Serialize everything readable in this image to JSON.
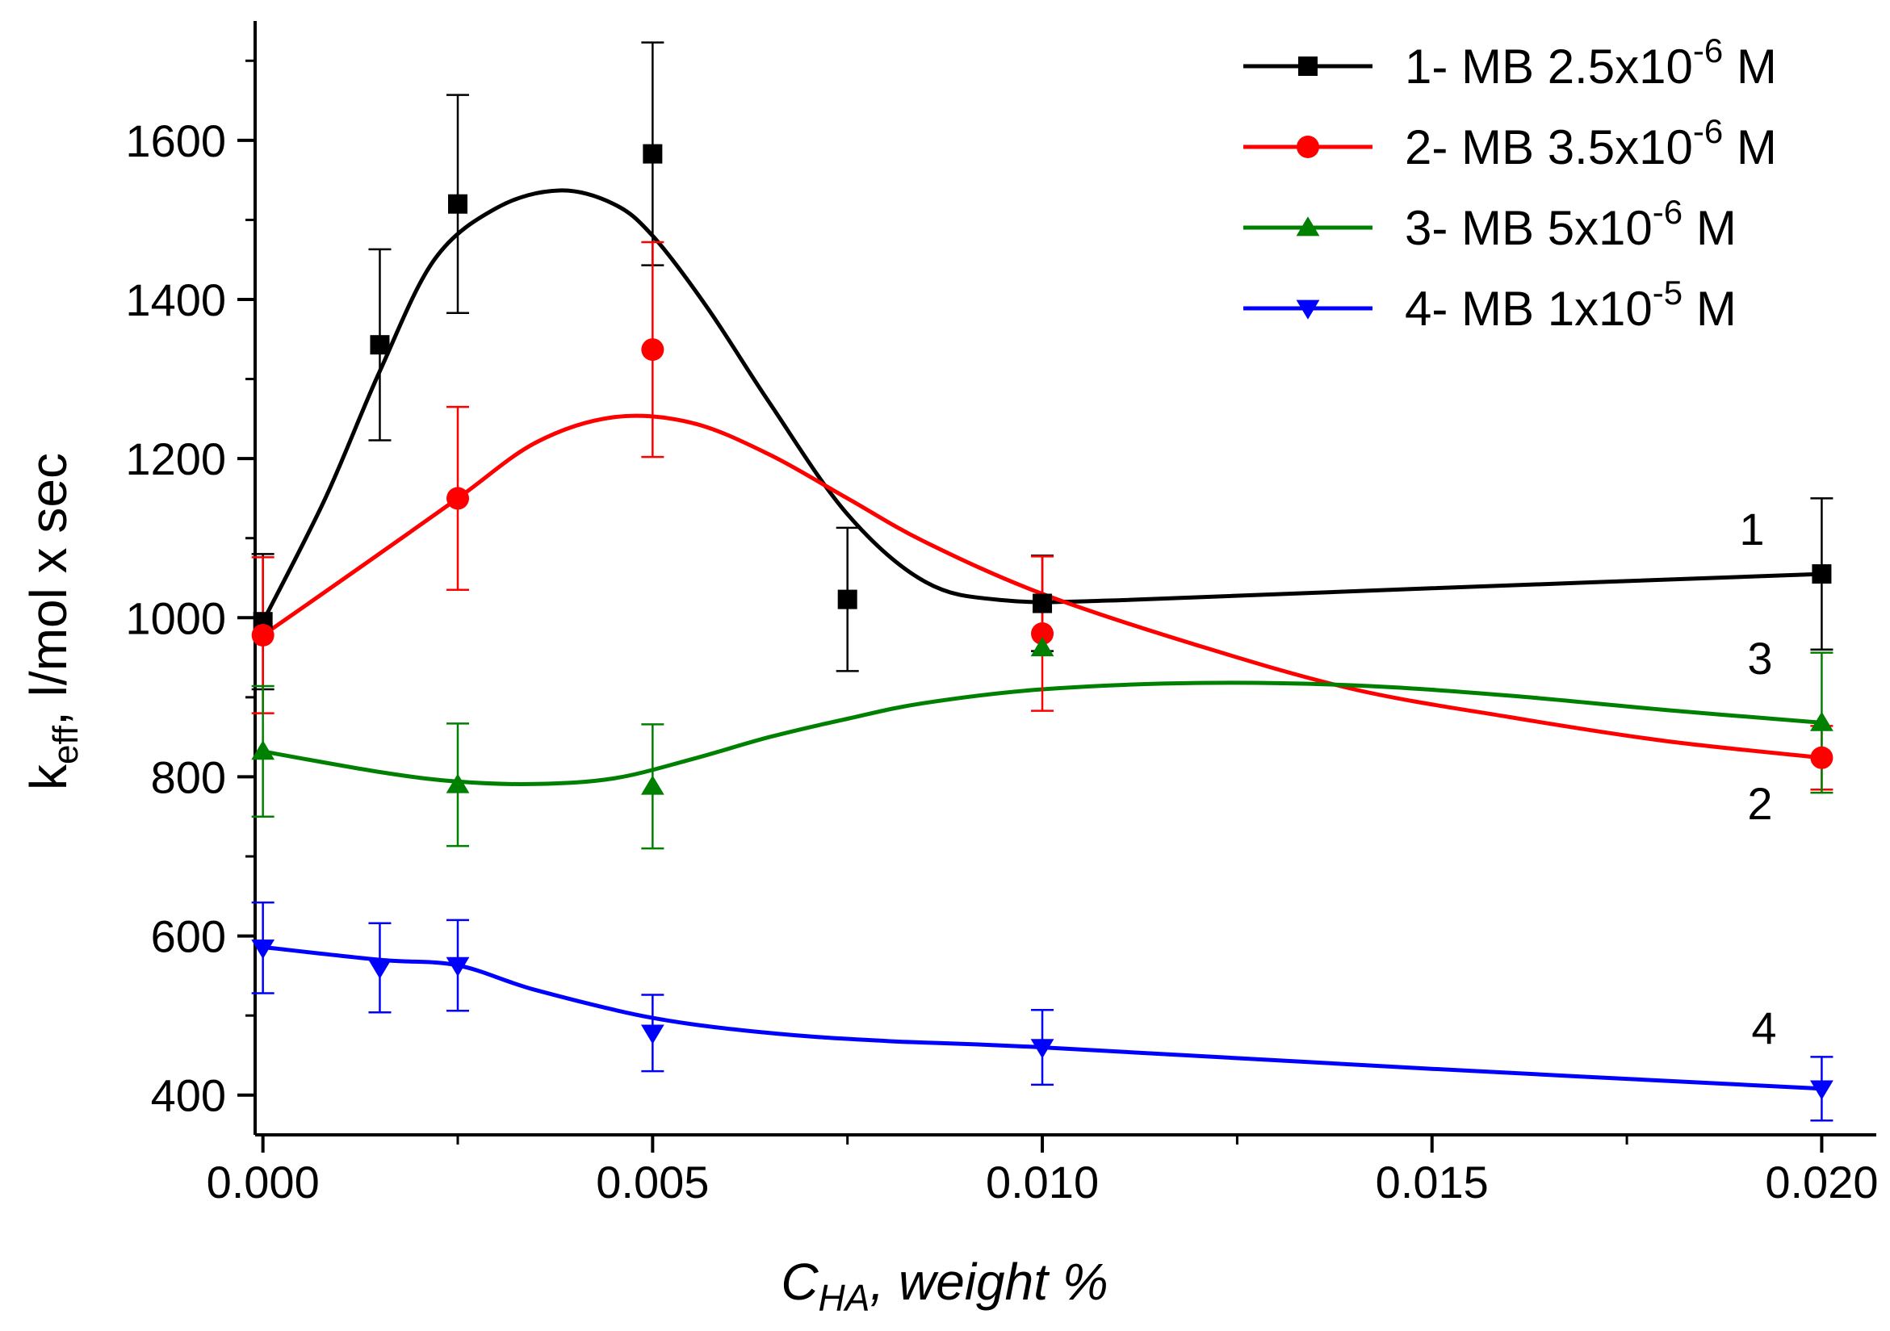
{
  "chart_data": {
    "type": "scatter",
    "title": "",
    "xlabel": {
      "main": "C",
      "sub": "HA",
      "rest": ", weight %"
    },
    "ylabel": {
      "main": "k",
      "sub": "eff",
      "rest": ", l/mol x sec"
    },
    "xlim": [
      -0.0001,
      0.0207
    ],
    "ylim": [
      350,
      1750
    ],
    "x_ticks": [
      0.0,
      0.005,
      0.01,
      0.015,
      0.02
    ],
    "x_tick_labels": [
      "0.000",
      "0.005",
      "0.010",
      "0.015",
      "0.020"
    ],
    "y_ticks": [
      400,
      600,
      800,
      1000,
      1200,
      1400,
      1600
    ],
    "y_tick_labels": [
      "400",
      "600",
      "800",
      "1000",
      "1200",
      "1400",
      "1600"
    ],
    "legend_position": "top-right",
    "series": [
      {
        "name": "1",
        "legend": {
          "prefix": "1- MB 2.5x10",
          "exp": "-6",
          "suffix": " M"
        },
        "color": "#000000",
        "marker": "square",
        "end_label": "1",
        "x": [
          0.0,
          0.0015,
          0.0025,
          0.005,
          0.0075,
          0.01,
          0.02
        ],
        "y": [
          995,
          1343,
          1520,
          1583,
          1023,
          1018,
          1055
        ],
        "err": [
          85,
          120,
          137,
          140,
          90,
          60,
          95
        ],
        "curve": [
          [
            0.0,
            995
          ],
          [
            0.0008,
            1150
          ],
          [
            0.0015,
            1310
          ],
          [
            0.0022,
            1450
          ],
          [
            0.003,
            1515
          ],
          [
            0.0038,
            1537
          ],
          [
            0.0045,
            1520
          ],
          [
            0.005,
            1480
          ],
          [
            0.0057,
            1390
          ],
          [
            0.0065,
            1270
          ],
          [
            0.0075,
            1130
          ],
          [
            0.0085,
            1045
          ],
          [
            0.0095,
            1022
          ],
          [
            0.011,
            1022
          ],
          [
            0.015,
            1037
          ],
          [
            0.02,
            1055
          ]
        ]
      },
      {
        "name": "2",
        "legend": {
          "prefix": "2- MB 3.5x10",
          "exp": "-6",
          "suffix": " M"
        },
        "color": "#ff0000",
        "marker": "circle",
        "end_label": "2",
        "x": [
          0.0,
          0.0025,
          0.005,
          0.01,
          0.02
        ],
        "y": [
          978,
          1150,
          1337,
          980,
          824
        ],
        "err": [
          98,
          115,
          135,
          97,
          40
        ],
        "curve": [
          [
            0.0,
            978
          ],
          [
            0.0012,
            1060
          ],
          [
            0.0025,
            1150
          ],
          [
            0.0035,
            1220
          ],
          [
            0.0045,
            1252
          ],
          [
            0.0055,
            1245
          ],
          [
            0.0065,
            1205
          ],
          [
            0.0075,
            1150
          ],
          [
            0.0085,
            1095
          ],
          [
            0.01,
            1030
          ],
          [
            0.012,
            965
          ],
          [
            0.014,
            910
          ],
          [
            0.016,
            875
          ],
          [
            0.018,
            845
          ],
          [
            0.02,
            824
          ]
        ]
      },
      {
        "name": "3",
        "legend": {
          "prefix": "3- MB 5x10",
          "exp": "-6",
          "suffix": " M"
        },
        "color": "#008000",
        "marker": "triangle-up",
        "end_label": "3",
        "x": [
          0.0,
          0.0025,
          0.005,
          0.01,
          0.02
        ],
        "y": [
          832,
          790,
          788,
          962,
          868
        ],
        "err": [
          82,
          77,
          78,
          0,
          88
        ],
        "curve": [
          [
            0.0,
            832
          ],
          [
            0.0015,
            806
          ],
          [
            0.0025,
            794
          ],
          [
            0.0035,
            791
          ],
          [
            0.0045,
            798
          ],
          [
            0.0055,
            822
          ],
          [
            0.0065,
            850
          ],
          [
            0.0075,
            873
          ],
          [
            0.0085,
            893
          ],
          [
            0.01,
            910
          ],
          [
            0.012,
            918
          ],
          [
            0.014,
            915
          ],
          [
            0.016,
            902
          ],
          [
            0.018,
            884
          ],
          [
            0.02,
            868
          ]
        ]
      },
      {
        "name": "4",
        "legend": {
          "prefix": "4- MB 1x10",
          "exp": "-5",
          "suffix": " M"
        },
        "color": "#0000ff",
        "marker": "triangle-down",
        "end_label": "4",
        "x": [
          0.0,
          0.0015,
          0.0025,
          0.005,
          0.01,
          0.02
        ],
        "y": [
          585,
          560,
          563,
          478,
          460,
          408
        ],
        "err": [
          57,
          56,
          57,
          48,
          47,
          40
        ],
        "curve": [
          [
            0.0,
            586
          ],
          [
            0.0015,
            570
          ],
          [
            0.0025,
            563
          ],
          [
            0.0035,
            532
          ],
          [
            0.005,
            497
          ],
          [
            0.0065,
            478
          ],
          [
            0.008,
            468
          ],
          [
            0.01,
            460
          ],
          [
            0.015,
            433
          ],
          [
            0.02,
            408
          ]
        ]
      }
    ]
  }
}
